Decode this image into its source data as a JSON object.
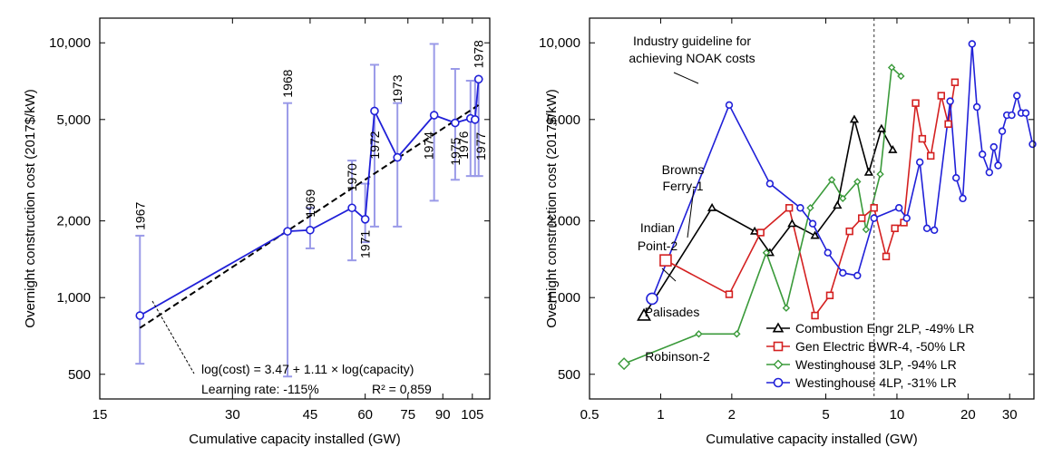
{
  "chart_data": [
    {
      "type": "line",
      "xlabel": "Cumulative capacity installed (GW)",
      "ylabel": "Overnight construction cost (2017$/kW)",
      "xscale": "log",
      "yscale": "log",
      "xlim": [
        15,
        115
      ],
      "ylim": [
        400,
        12500
      ],
      "xticks": [
        15,
        30,
        45,
        60,
        75,
        90,
        105
      ],
      "yticks": [
        500,
        1000,
        2000,
        5000,
        10000
      ],
      "ytick_labels": [
        "500",
        "1,000",
        "2,000",
        "5,000",
        "10,000"
      ],
      "series": [
        {
          "color": "#2020d8",
          "marker": "circle",
          "points": [
            {
              "x": 18.5,
              "y": 850,
              "low": 550,
              "high": 1750,
              "label": "1967"
            },
            {
              "x": 40,
              "y": 1820,
              "low": 490,
              "high": 5800,
              "label": "1968"
            },
            {
              "x": 45,
              "y": 1840,
              "low": 1560,
              "high": 2250,
              "label": "1969"
            },
            {
              "x": 56,
              "y": 2250,
              "low": 1400,
              "high": 3450,
              "label": "1970"
            },
            {
              "x": 60,
              "y": 2030,
              "low": 1650,
              "high": 2800,
              "label": "1971"
            },
            {
              "x": 63,
              "y": 5400,
              "low": 1900,
              "high": 8200,
              "label": "1972"
            },
            {
              "x": 71,
              "y": 3550,
              "low": 1900,
              "high": 5800,
              "label": "1973"
            },
            {
              "x": 86,
              "y": 5200,
              "low": 2400,
              "high": 9900,
              "label": "1974"
            },
            {
              "x": 96,
              "y": 4850,
              "low": 2900,
              "high": 7900,
              "label": "1975"
            },
            {
              "x": 104,
              "y": 5050,
              "low": 3000,
              "high": 7100,
              "label": "1976"
            },
            {
              "x": 106.5,
              "y": 5000,
              "low": 3000,
              "high": 7100,
              "label": "1977"
            },
            {
              "x": 108.5,
              "y": 7200,
              "low": 3000,
              "high": 7200,
              "label": "1978"
            }
          ]
        }
      ],
      "fit": {
        "x": [
          18.5,
          108.5
        ],
        "y": [
          760,
          5700
        ],
        "style": "dashed",
        "color": "#000000"
      },
      "annotations": {
        "equation": "log(cost) = 3.47 + 1.11 × log(capacity)",
        "learning_rate": "Learning rate: -115%",
        "r_squared": "R² = 0.859"
      }
    },
    {
      "type": "line",
      "xlabel": "Cumulative capacity installed (GW)",
      "ylabel": "Overnight construction cost (2017$/kW)",
      "xscale": "log",
      "yscale": "log",
      "xlim": [
        0.5,
        38
      ],
      "ylim": [
        400,
        12500
      ],
      "xticks": [
        0.5,
        1,
        2,
        5,
        10,
        20,
        30
      ],
      "xtick_labels": [
        "0.5",
        "1",
        "2",
        "5",
        "10",
        "20",
        "30"
      ],
      "yticks": [
        500,
        1000,
        2000,
        5000,
        10000
      ],
      "ytick_labels": [
        "500",
        "1,000",
        "2,000",
        "5,000",
        "10,000"
      ],
      "guideline": {
        "x": 8,
        "text": [
          "Industry guideline for",
          "achieving NOAK costs"
        ]
      },
      "legend": "bottom-right",
      "series": [
        {
          "name": "Combustion Engr 2LP, -49% LR",
          "color": "#000000",
          "marker": "triangle",
          "points": [
            [
              0.85,
              850
            ],
            [
              1.65,
              2250
            ],
            [
              2.5,
              1820
            ],
            [
              2.9,
              1500
            ],
            [
              3.6,
              1950
            ],
            [
              4.5,
              1750
            ],
            [
              5.6,
              2300
            ],
            [
              6.6,
              5000
            ],
            [
              7.6,
              3100
            ],
            [
              8.6,
              4600
            ],
            [
              9.6,
              3800
            ]
          ]
        },
        {
          "name": "Gen Electric BWR-4, -50% LR",
          "color": "#d42020",
          "marker": "square",
          "points": [
            [
              1.05,
              1400
            ],
            [
              1.95,
              1030
            ],
            [
              2.65,
              1800
            ],
            [
              3.5,
              2250
            ],
            [
              4.5,
              850
            ],
            [
              5.2,
              1020
            ],
            [
              6.3,
              1820
            ],
            [
              7.1,
              2050
            ],
            [
              8.0,
              2250
            ],
            [
              9.0,
              1450
            ],
            [
              9.8,
              1870
            ],
            [
              10.7,
              1970
            ],
            [
              12.0,
              5800
            ],
            [
              12.8,
              4200
            ],
            [
              13.9,
              3600
            ],
            [
              15.4,
              6200
            ],
            [
              16.5,
              4800
            ],
            [
              17.6,
              7000
            ]
          ]
        },
        {
          "name": "Westinghouse 3LP, -94% LR",
          "color": "#3a9a3a",
          "marker": "diamond",
          "points": [
            [
              0.7,
              550
            ],
            [
              1.45,
              720
            ],
            [
              2.1,
              720
            ],
            [
              2.8,
              1500
            ],
            [
              3.4,
              910
            ],
            [
              4.3,
              2250
            ],
            [
              5.3,
              2900
            ],
            [
              5.9,
              2450
            ],
            [
              6.8,
              2850
            ],
            [
              7.4,
              1850
            ],
            [
              8.5,
              3050
            ],
            [
              9.5,
              8000
            ],
            [
              10.4,
              7400
            ]
          ]
        },
        {
          "name": "Westinghouse 4LP, -31% LR",
          "color": "#2020d8",
          "marker": "circle",
          "points": [
            [
              0.92,
              990
            ],
            [
              1.95,
              5700
            ],
            [
              2.9,
              2800
            ],
            [
              3.9,
              2250
            ],
            [
              4.4,
              1950
            ],
            [
              5.1,
              1500
            ],
            [
              5.9,
              1250
            ],
            [
              6.8,
              1220
            ],
            [
              8.0,
              2050
            ],
            [
              10.2,
              2250
            ],
            [
              11.0,
              2050
            ],
            [
              12.5,
              3400
            ],
            [
              13.4,
              1870
            ],
            [
              14.4,
              1840
            ],
            [
              16.8,
              5900
            ],
            [
              17.8,
              2950
            ],
            [
              19.0,
              2450
            ],
            [
              20.8,
              9900
            ],
            [
              21.8,
              5600
            ],
            [
              23.0,
              3650
            ],
            [
              24.6,
              3100
            ],
            [
              25.7,
              3900
            ],
            [
              26.8,
              3300
            ],
            [
              27.9,
              4500
            ],
            [
              29.2,
              5200
            ],
            [
              30.6,
              5200
            ],
            [
              32.2,
              6200
            ],
            [
              33.6,
              5300
            ],
            [
              35.1,
              5300
            ],
            [
              37.5,
              4000
            ]
          ]
        }
      ],
      "annotations": {
        "browns_ferry": [
          "Browns",
          "Ferry-1"
        ],
        "indian_point": [
          "Indian",
          "Point-2"
        ],
        "palisades": "Palisades",
        "robinson": "Robinson-2"
      }
    }
  ]
}
